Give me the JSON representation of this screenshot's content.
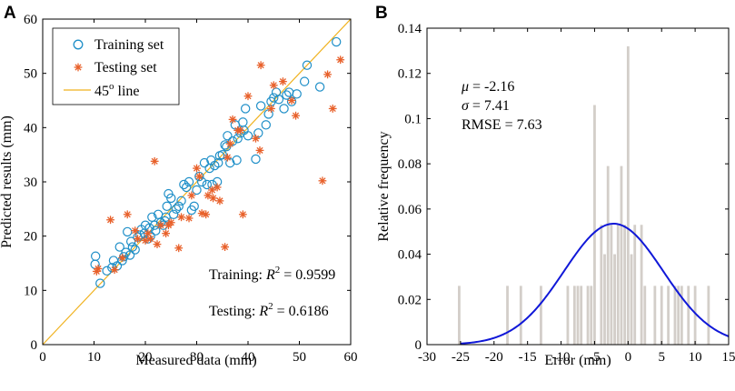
{
  "panels": {
    "a_label": "A",
    "b_label": "B"
  },
  "colors": {
    "training": "#1f8fc8",
    "testing": "#e8602a",
    "line45": "#f0b21f",
    "bars": "#d3cec9",
    "normal": "#1018d8",
    "axis": "#000000"
  },
  "chart_data": [
    {
      "type": "scatter",
      "xlabel": "Measured data (mm)",
      "ylabel": "Predicted results (mm)",
      "xlim": [
        0,
        60
      ],
      "ylim": [
        0,
        60
      ],
      "xticks": [
        "0",
        "10",
        "20",
        "30",
        "40",
        "50",
        "60"
      ],
      "yticks": [
        "0",
        "10",
        "20",
        "30",
        "40",
        "50",
        "60"
      ],
      "legend": {
        "placement": "top-left",
        "training": "Training set",
        "testing": "Testing set",
        "line_base": "45",
        "line_sup": "o",
        "line_suffix": "line"
      },
      "annotations": {
        "training_prefix": "Training: ",
        "training_r2": " = 0.9599",
        "testing_prefix": "Testing: ",
        "testing_r2": " = 0.6186",
        "r_symbol": "R",
        "r_sup": "2"
      },
      "series": [
        {
          "name": "Training set",
          "points": [
            [
              10.2,
              14.8
            ],
            [
              10.3,
              16.3
            ],
            [
              11.2,
              11.3
            ],
            [
              12.5,
              13.6
            ],
            [
              13.5,
              14.2
            ],
            [
              13.8,
              15.5
            ],
            [
              15.0,
              18.0
            ],
            [
              15.5,
              15.5
            ],
            [
              15.8,
              16.2
            ],
            [
              16.2,
              17.0
            ],
            [
              16.5,
              20.8
            ],
            [
              17.0,
              16.5
            ],
            [
              17.5,
              18.0
            ],
            [
              18.0,
              17.5
            ],
            [
              18.5,
              19.8
            ],
            [
              19.0,
              20.2
            ],
            [
              19.2,
              21.2
            ],
            [
              19.8,
              20.5
            ],
            [
              20.0,
              22.0
            ],
            [
              20.5,
              19.5
            ],
            [
              20.8,
              21.5
            ],
            [
              21.0,
              20.0
            ],
            [
              21.3,
              23.5
            ],
            [
              21.8,
              22.0
            ],
            [
              22.0,
              21.0
            ],
            [
              22.5,
              24.0
            ],
            [
              23.0,
              22.5
            ],
            [
              23.5,
              22.0
            ],
            [
              24.0,
              23.5
            ],
            [
              24.2,
              25.5
            ],
            [
              24.5,
              27.8
            ],
            [
              25.0,
              27.0
            ],
            [
              25.5,
              24.0
            ],
            [
              26.0,
              25.0
            ],
            [
              27.0,
              26.5
            ],
            [
              27.5,
              29.5
            ],
            [
              28.0,
              29.0
            ],
            [
              28.5,
              30.0
            ],
            [
              29.0,
              24.8
            ],
            [
              29.5,
              25.5
            ],
            [
              30.0,
              28.5
            ],
            [
              30.5,
              31.0
            ],
            [
              31.0,
              30.0
            ],
            [
              31.5,
              33.5
            ],
            [
              32.0,
              29.5
            ],
            [
              32.5,
              32.5
            ],
            [
              32.8,
              34.0
            ],
            [
              33.0,
              29.5
            ],
            [
              33.5,
              33.0
            ],
            [
              34.0,
              30.0
            ],
            [
              34.5,
              34.8
            ],
            [
              35.0,
              35.0
            ],
            [
              35.5,
              36.8
            ],
            [
              35.8,
              36.5
            ],
            [
              36.0,
              38.5
            ],
            [
              36.5,
              33.5
            ],
            [
              37.0,
              37.5
            ],
            [
              37.5,
              40.5
            ],
            [
              38.0,
              38.0
            ],
            [
              38.5,
              39.0
            ],
            [
              39.0,
              41.0
            ],
            [
              39.2,
              39.5
            ],
            [
              39.5,
              43.5
            ],
            [
              40.0,
              38.5
            ],
            [
              41.5,
              34.2
            ],
            [
              42.0,
              39.0
            ],
            [
              42.5,
              44.0
            ],
            [
              43.5,
              40.5
            ],
            [
              44.0,
              42.5
            ],
            [
              44.5,
              44.8
            ],
            [
              45.0,
              45.5
            ],
            [
              45.5,
              46.5
            ],
            [
              46.0,
              45.2
            ],
            [
              47.0,
              43.5
            ],
            [
              47.5,
              46.0
            ],
            [
              48.0,
              46.5
            ],
            [
              48.5,
              44.8
            ],
            [
              49.5,
              46.2
            ],
            [
              51.0,
              48.5
            ],
            [
              51.5,
              51.5
            ],
            [
              54.0,
              47.5
            ],
            [
              57.2,
              55.8
            ],
            [
              37.8,
              34.0
            ],
            [
              17.2,
              19.0
            ],
            [
              26.5,
              25.5
            ],
            [
              34.2,
              33.5
            ],
            [
              23.8,
              22.8
            ],
            [
              14.5,
              14.5
            ]
          ]
        },
        {
          "name": "Testing set",
          "points": [
            [
              10.5,
              13.5
            ],
            [
              10.8,
              14.0
            ],
            [
              13.2,
              23.0
            ],
            [
              14.0,
              13.8
            ],
            [
              15.5,
              16.0
            ],
            [
              16.5,
              24.0
            ],
            [
              18.0,
              21.0
            ],
            [
              18.5,
              19.5
            ],
            [
              20.0,
              19.2
            ],
            [
              20.5,
              20.5
            ],
            [
              21.0,
              19.5
            ],
            [
              21.8,
              33.8
            ],
            [
              22.3,
              18.5
            ],
            [
              23.0,
              22.0
            ],
            [
              24.0,
              20.5
            ],
            [
              24.5,
              22.0
            ],
            [
              25.0,
              22.5
            ],
            [
              26.5,
              17.8
            ],
            [
              27.0,
              23.5
            ],
            [
              28.5,
              23.3
            ],
            [
              29.0,
              27.5
            ],
            [
              30.0,
              32.5
            ],
            [
              30.5,
              31.0
            ],
            [
              31.0,
              24.2
            ],
            [
              31.8,
              24.0
            ],
            [
              32.2,
              27.5
            ],
            [
              33.0,
              28.5
            ],
            [
              34.0,
              29.0
            ],
            [
              34.5,
              26.5
            ],
            [
              35.5,
              18.0
            ],
            [
              36.0,
              34.5
            ],
            [
              36.5,
              37.0
            ],
            [
              37.0,
              41.5
            ],
            [
              38.0,
              39.5
            ],
            [
              38.5,
              39.5
            ],
            [
              39.0,
              24.0
            ],
            [
              40.0,
              45.8
            ],
            [
              41.5,
              38.0
            ],
            [
              42.5,
              51.5
            ],
            [
              42.3,
              35.8
            ],
            [
              44.5,
              43.5
            ],
            [
              45.0,
              47.8
            ],
            [
              46.8,
              48.5
            ],
            [
              48.5,
              45.0
            ],
            [
              49.3,
              42.2
            ],
            [
              54.5,
              30.2
            ],
            [
              55.5,
              49.8
            ],
            [
              56.5,
              43.5
            ],
            [
              58.0,
              52.5
            ],
            [
              33.2,
              27.0
            ]
          ]
        },
        {
          "name": "45o line",
          "points": [
            [
              0,
              0
            ],
            [
              60,
              60
            ]
          ]
        }
      ]
    },
    {
      "type": "histogram",
      "xlabel": "Error (mm)",
      "ylabel": "Relative frequency",
      "xlim": [
        -30,
        15
      ],
      "ylim": [
        0,
        0.14
      ],
      "xticks": [
        "-30",
        "-25",
        "-20",
        "-15",
        "-10",
        "-5",
        "0",
        "5",
        "10",
        "15"
      ],
      "yticks": [
        "0",
        "0.02",
        "0.04",
        "0.06",
        "0.08",
        "0.1",
        "0.12",
        "0.14"
      ],
      "annotations": {
        "mu_symbol": "μ",
        "mu_value": " = -2.16",
        "sigma_symbol": "σ",
        "sigma_value": " = 7.41",
        "rmse": "RMSE = 7.63"
      },
      "bars": [
        {
          "x": -25.2,
          "value": 0.026
        },
        {
          "x": -18.0,
          "value": 0.026
        },
        {
          "x": -16.0,
          "value": 0.026
        },
        {
          "x": -13.0,
          "value": 0.026
        },
        {
          "x": -9.0,
          "value": 0.026
        },
        {
          "x": -8.0,
          "value": 0.026
        },
        {
          "x": -7.5,
          "value": 0.026
        },
        {
          "x": -7.0,
          "value": 0.026
        },
        {
          "x": -6.0,
          "value": 0.026
        },
        {
          "x": -5.5,
          "value": 0.026
        },
        {
          "x": -5.0,
          "value": 0.106
        },
        {
          "x": -4.0,
          "value": 0.053
        },
        {
          "x": -3.5,
          "value": 0.04
        },
        {
          "x": -3.0,
          "value": 0.079
        },
        {
          "x": -2.5,
          "value": 0.053
        },
        {
          "x": -2.0,
          "value": 0.04
        },
        {
          "x": -1.5,
          "value": 0.053
        },
        {
          "x": -1.0,
          "value": 0.079
        },
        {
          "x": -0.5,
          "value": 0.053
        },
        {
          "x": 0.0,
          "value": 0.132
        },
        {
          "x": 0.5,
          "value": 0.04
        },
        {
          "x": 1.0,
          "value": 0.053
        },
        {
          "x": 2.0,
          "value": 0.053
        },
        {
          "x": 2.5,
          "value": 0.026
        },
        {
          "x": 4.0,
          "value": 0.026
        },
        {
          "x": 5.0,
          "value": 0.026
        },
        {
          "x": 6.0,
          "value": 0.026
        },
        {
          "x": 7.0,
          "value": 0.026
        },
        {
          "x": 7.5,
          "value": 0.026
        },
        {
          "x": 8.0,
          "value": 0.026
        },
        {
          "x": 9.0,
          "value": 0.026
        },
        {
          "x": 10.0,
          "value": 0.026
        },
        {
          "x": 12.0,
          "value": 0.026
        }
      ],
      "normal_curve": {
        "mu": -2.16,
        "sigma": 7.41,
        "peak": 0.0535
      }
    }
  ]
}
